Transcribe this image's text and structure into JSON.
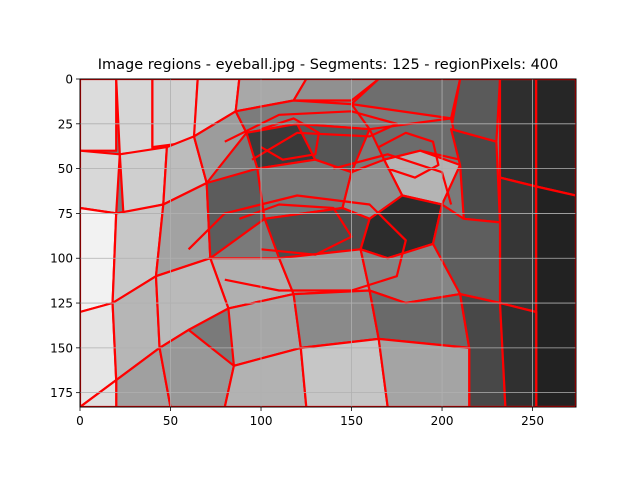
{
  "chart_data": {
    "type": "heatmap",
    "title": "Image regions - eyeball.jpg - Segments: 125 - regionPixels: 400",
    "xlabel": "",
    "ylabel": "",
    "xlim": [
      0,
      274
    ],
    "ylim": [
      183,
      0
    ],
    "y_inverted": true,
    "x_ticks": [
      0,
      50,
      100,
      150,
      200,
      250
    ],
    "y_ticks": [
      0,
      25,
      50,
      75,
      100,
      125,
      150,
      175
    ],
    "grid": true,
    "boundary_color": "#ff0000",
    "grid_color": "#b0b0b0",
    "regions": [
      {
        "points": [
          [
            0,
            0
          ],
          [
            20,
            0
          ],
          [
            20,
            40
          ],
          [
            0,
            40
          ]
        ],
        "gray": "#dcdcdc"
      },
      {
        "points": [
          [
            20,
            0
          ],
          [
            40,
            0
          ],
          [
            40,
            40
          ],
          [
            22,
            42
          ]
        ],
        "gray": "#d6d6d6"
      },
      {
        "points": [
          [
            40,
            0
          ],
          [
            65,
            0
          ],
          [
            63,
            35
          ],
          [
            40,
            38
          ]
        ],
        "gray": "#d2d2d2"
      },
      {
        "points": [
          [
            65,
            0
          ],
          [
            88,
            0
          ],
          [
            86,
            18
          ],
          [
            63,
            32
          ]
        ],
        "gray": "#cecece"
      },
      {
        "points": [
          [
            88,
            0
          ],
          [
            125,
            0
          ],
          [
            118,
            12
          ],
          [
            86,
            18
          ]
        ],
        "gray": "#a8a8a8"
      },
      {
        "points": [
          [
            125,
            0
          ],
          [
            165,
            0
          ],
          [
            150,
            12
          ],
          [
            118,
            12
          ]
        ],
        "gray": "#909090"
      },
      {
        "points": [
          [
            165,
            0
          ],
          [
            210,
            0
          ],
          [
            205,
            22
          ],
          [
            150,
            14
          ]
        ],
        "gray": "#6e6e6e"
      },
      {
        "points": [
          [
            210,
            0
          ],
          [
            232,
            0
          ],
          [
            230,
            35
          ],
          [
            205,
            28
          ]
        ],
        "gray": "#5a5a5a"
      },
      {
        "points": [
          [
            232,
            0
          ],
          [
            252,
            0
          ],
          [
            252,
            60
          ],
          [
            232,
            55
          ]
        ],
        "gray": "#2e2e2e"
      },
      {
        "points": [
          [
            252,
            0
          ],
          [
            274,
            0
          ],
          [
            274,
            65
          ],
          [
            252,
            60
          ]
        ],
        "gray": "#262626"
      },
      {
        "points": [
          [
            0,
            40
          ],
          [
            22,
            42
          ],
          [
            20,
            75
          ],
          [
            0,
            72
          ]
        ],
        "gray": "#d8d8d8"
      },
      {
        "points": [
          [
            22,
            42
          ],
          [
            48,
            38
          ],
          [
            46,
            70
          ],
          [
            24,
            75
          ]
        ],
        "gray": "#cfcfcf"
      },
      {
        "points": [
          [
            48,
            38
          ],
          [
            63,
            32
          ],
          [
            70,
            58
          ],
          [
            46,
            70
          ]
        ],
        "gray": "#bdbdbd"
      },
      {
        "points": [
          [
            63,
            32
          ],
          [
            86,
            18
          ],
          [
            92,
            30
          ],
          [
            70,
            58
          ]
        ],
        "gray": "#9c9c9c"
      },
      {
        "points": [
          [
            86,
            18
          ],
          [
            118,
            12
          ],
          [
            150,
            14
          ],
          [
            160,
            28
          ],
          [
            120,
            25
          ],
          [
            92,
            30
          ]
        ],
        "gray": "#7c7c7c"
      },
      {
        "points": [
          [
            92,
            30
          ],
          [
            120,
            25
          ],
          [
            130,
            45
          ],
          [
            98,
            50
          ]
        ],
        "gray": "#3a3a3a"
      },
      {
        "points": [
          [
            120,
            25
          ],
          [
            160,
            28
          ],
          [
            150,
            52
          ],
          [
            130,
            45
          ]
        ],
        "gray": "#565656"
      },
      {
        "points": [
          [
            160,
            28
          ],
          [
            205,
            22
          ],
          [
            210,
            45
          ],
          [
            188,
            40
          ],
          [
            168,
            45
          ]
        ],
        "gray": "#6c6c6c"
      },
      {
        "points": [
          [
            168,
            45
          ],
          [
            188,
            40
          ],
          [
            210,
            48
          ],
          [
            200,
            70
          ],
          [
            178,
            65
          ]
        ],
        "gray": "#b4b4b4"
      },
      {
        "points": [
          [
            205,
            28
          ],
          [
            230,
            35
          ],
          [
            232,
            80
          ],
          [
            212,
            78
          ],
          [
            210,
            48
          ]
        ],
        "gray": "#4a4a4a"
      },
      {
        "points": [
          [
            232,
            55
          ],
          [
            252,
            60
          ],
          [
            252,
            130
          ],
          [
            232,
            125
          ]
        ],
        "gray": "#363636"
      },
      {
        "points": [
          [
            252,
            60
          ],
          [
            274,
            65
          ],
          [
            274,
            183
          ],
          [
            252,
            183
          ]
        ],
        "gray": "#222222"
      },
      {
        "points": [
          [
            0,
            72
          ],
          [
            20,
            75
          ],
          [
            18,
            125
          ],
          [
            0,
            130
          ]
        ],
        "gray": "#f2f2f2"
      },
      {
        "points": [
          [
            20,
            75
          ],
          [
            46,
            70
          ],
          [
            42,
            110
          ],
          [
            18,
            125
          ]
        ],
        "gray": "#c8c8c8"
      },
      {
        "points": [
          [
            46,
            70
          ],
          [
            70,
            58
          ],
          [
            72,
            100
          ],
          [
            42,
            110
          ]
        ],
        "gray": "#a2a2a2"
      },
      {
        "points": [
          [
            70,
            58
          ],
          [
            98,
            50
          ],
          [
            102,
            78
          ],
          [
            72,
            100
          ]
        ],
        "gray": "#5c5c5c"
      },
      {
        "points": [
          [
            98,
            50
          ],
          [
            130,
            45
          ],
          [
            150,
            52
          ],
          [
            145,
            72
          ],
          [
            102,
            78
          ]
        ],
        "gray": "#767676"
      },
      {
        "points": [
          [
            150,
            52
          ],
          [
            168,
            45
          ],
          [
            178,
            65
          ],
          [
            160,
            78
          ],
          [
            145,
            72
          ]
        ],
        "gray": "#8e8e8e"
      },
      {
        "points": [
          [
            102,
            78
          ],
          [
            145,
            72
          ],
          [
            160,
            78
          ],
          [
            155,
            95
          ],
          [
            110,
            100
          ]
        ],
        "gray": "#4c4c4c"
      },
      {
        "points": [
          [
            160,
            78
          ],
          [
            178,
            65
          ],
          [
            200,
            70
          ],
          [
            195,
            92
          ],
          [
            170,
            100
          ],
          [
            155,
            95
          ]
        ],
        "gray": "#2c2c2c"
      },
      {
        "points": [
          [
            200,
            70
          ],
          [
            212,
            78
          ],
          [
            232,
            80
          ],
          [
            232,
            125
          ],
          [
            210,
            120
          ],
          [
            195,
            92
          ]
        ],
        "gray": "#5e5e5e"
      },
      {
        "points": [
          [
            72,
            100
          ],
          [
            110,
            100
          ],
          [
            118,
            120
          ],
          [
            82,
            128
          ]
        ],
        "gray": "#b0b0b0"
      },
      {
        "points": [
          [
            110,
            100
          ],
          [
            155,
            95
          ],
          [
            160,
            118
          ],
          [
            118,
            120
          ]
        ],
        "gray": "#9a9a9a"
      },
      {
        "points": [
          [
            155,
            95
          ],
          [
            170,
            100
          ],
          [
            195,
            92
          ],
          [
            210,
            120
          ],
          [
            180,
            125
          ],
          [
            160,
            118
          ]
        ],
        "gray": "#858585"
      },
      {
        "points": [
          [
            0,
            130
          ],
          [
            18,
            125
          ],
          [
            20,
            168
          ],
          [
            0,
            183
          ]
        ],
        "gray": "#e6e6e6"
      },
      {
        "points": [
          [
            18,
            125
          ],
          [
            42,
            110
          ],
          [
            44,
            150
          ],
          [
            20,
            168
          ]
        ],
        "gray": "#b6b6b6"
      },
      {
        "points": [
          [
            42,
            110
          ],
          [
            72,
            100
          ],
          [
            82,
            128
          ],
          [
            60,
            140
          ],
          [
            44,
            150
          ]
        ],
        "gray": "#bababa"
      },
      {
        "points": [
          [
            82,
            128
          ],
          [
            118,
            120
          ],
          [
            122,
            150
          ],
          [
            85,
            160
          ]
        ],
        "gray": "#a6a6a6"
      },
      {
        "points": [
          [
            118,
            120
          ],
          [
            160,
            118
          ],
          [
            165,
            145
          ],
          [
            122,
            150
          ]
        ],
        "gray": "#8a8a8a"
      },
      {
        "points": [
          [
            160,
            118
          ],
          [
            180,
            125
          ],
          [
            210,
            120
          ],
          [
            215,
            150
          ],
          [
            165,
            145
          ]
        ],
        "gray": "#6a6a6a"
      },
      {
        "points": [
          [
            210,
            120
          ],
          [
            232,
            125
          ],
          [
            235,
            183
          ],
          [
            215,
            183
          ],
          [
            215,
            150
          ]
        ],
        "gray": "#484848"
      },
      {
        "points": [
          [
            232,
            125
          ],
          [
            252,
            130
          ],
          [
            252,
            183
          ],
          [
            235,
            183
          ]
        ],
        "gray": "#303030"
      },
      {
        "points": [
          [
            20,
            168
          ],
          [
            44,
            150
          ],
          [
            50,
            183
          ],
          [
            20,
            183
          ]
        ],
        "gray": "#a0a0a0"
      },
      {
        "points": [
          [
            0,
            183
          ],
          [
            20,
            168
          ],
          [
            20,
            183
          ]
        ],
        "gray": "#dedede"
      },
      {
        "points": [
          [
            44,
            150
          ],
          [
            60,
            140
          ],
          [
            85,
            160
          ],
          [
            80,
            183
          ],
          [
            50,
            183
          ]
        ],
        "gray": "#989898"
      },
      {
        "points": [
          [
            85,
            160
          ],
          [
            122,
            150
          ],
          [
            125,
            183
          ],
          [
            80,
            183
          ]
        ],
        "gray": "#b2b2b2"
      },
      {
        "points": [
          [
            122,
            150
          ],
          [
            165,
            145
          ],
          [
            170,
            183
          ],
          [
            125,
            183
          ]
        ],
        "gray": "#c6c6c6"
      },
      {
        "points": [
          [
            165,
            145
          ],
          [
            215,
            150
          ],
          [
            215,
            183
          ],
          [
            170,
            183
          ]
        ],
        "gray": "#a4a4a4"
      }
    ],
    "contours": [
      {
        "points": [
          [
            100,
            28
          ],
          [
            118,
            22
          ],
          [
            132,
            30
          ],
          [
            130,
            42
          ],
          [
            112,
            45
          ],
          [
            100,
            38
          ]
        ]
      },
      {
        "points": [
          [
            165,
            38
          ],
          [
            180,
            30
          ],
          [
            195,
            35
          ],
          [
            198,
            48
          ],
          [
            185,
            55
          ],
          [
            170,
            50
          ]
        ]
      },
      {
        "points": [
          [
            88,
            78
          ],
          [
            110,
            70
          ],
          [
            140,
            72
          ],
          [
            150,
            88
          ],
          [
            130,
            98
          ],
          [
            100,
            95
          ]
        ]
      },
      {
        "points": [
          [
            80,
            35
          ],
          [
            110,
            20
          ],
          [
            150,
            18
          ],
          [
            175,
            25
          ],
          [
            160,
            32
          ],
          [
            120,
            30
          ],
          [
            95,
            45
          ]
        ]
      },
      {
        "points": [
          [
            60,
            95
          ],
          [
            80,
            75
          ],
          [
            120,
            65
          ],
          [
            160,
            70
          ],
          [
            180,
            90
          ],
          [
            175,
            110
          ],
          [
            150,
            118
          ],
          [
            110,
            118
          ],
          [
            80,
            112
          ]
        ]
      },
      {
        "points": [
          [
            140,
            50
          ],
          [
            170,
            42
          ],
          [
            200,
            52
          ],
          [
            205,
            70
          ]
        ]
      }
    ]
  }
}
